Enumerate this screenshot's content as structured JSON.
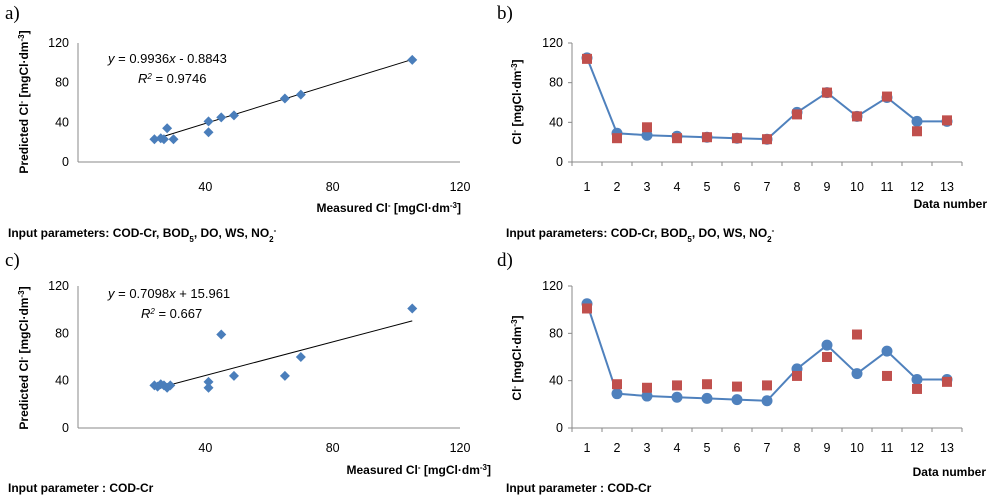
{
  "colors": {
    "scatter_marker": "#4a7ebb",
    "measured": "#4f81bd",
    "predicted": "#c0504d",
    "axis": "#898989",
    "trendline": "#000000"
  },
  "chart_data": [
    {
      "panel": "a)",
      "type": "scatter",
      "xlabel": "Measured Cl",
      "xlabel_sup": "-",
      "xlabel_unit": "[mgCl·dm",
      "xlabel_unit_sup": "-3",
      "ylabel": "Predicted Cl",
      "ylabel_sup": "-",
      "ylabel_unit": "[mgCl·dm",
      "ylabel_unit_sup": "-3",
      "xlim": [
        0,
        120
      ],
      "ylim": [
        0,
        120
      ],
      "xticks": [
        "40",
        "80",
        "120"
      ],
      "yticks": [
        "0",
        "40",
        "80",
        "120"
      ],
      "equation": "y = 0.9936x - 0.8843",
      "r2": "R² = 0.9746",
      "trendline": {
        "slope": 0.9936,
        "intercept": -0.8843,
        "x_range": [
          24,
          105
        ]
      },
      "x": [
        24,
        26,
        27,
        28,
        30,
        41,
        41,
        45,
        49,
        65,
        70,
        105
      ],
      "y": [
        23,
        24,
        23,
        34,
        23,
        41,
        30,
        45,
        47,
        64,
        68,
        103
      ],
      "caption_parts": [
        "Input parameters: COD-Cr, BOD",
        "5",
        ", DO, WS, NO",
        "2",
        "-"
      ]
    },
    {
      "panel": "b)",
      "type": "line",
      "xlabel": "Data number",
      "ylabel": "Cl",
      "ylabel_sup": "-",
      "ylabel_unit": "[mgCl·dm",
      "ylabel_unit_sup": "-3",
      "ylim": [
        0,
        120
      ],
      "yticks": [
        "0",
        "40",
        "80",
        "120"
      ],
      "categories": [
        "1",
        "2",
        "3",
        "4",
        "5",
        "6",
        "7",
        "8",
        "9",
        "10",
        "11",
        "12",
        "13"
      ],
      "grid": "none",
      "legend": "none",
      "series": [
        {
          "values": [
            105,
            29,
            27,
            26,
            25,
            24,
            23,
            50,
            70,
            46,
            65,
            41,
            41
          ]
        },
        {
          "values": [
            104,
            24,
            35,
            24,
            25,
            24,
            23,
            48,
            70,
            46,
            66,
            31,
            42
          ]
        }
      ],
      "caption_parts": [
        "Input parameters: COD-Cr, BOD",
        "5",
        ", DO, WS, NO",
        "2",
        "-"
      ]
    },
    {
      "panel": "c)",
      "type": "scatter",
      "xlabel": "Measured Cl",
      "xlabel_sup": "-",
      "xlabel_unit": "[mgCl·dm",
      "xlabel_unit_sup": "-3",
      "ylabel": "Predicted Cl",
      "ylabel_sup": "-",
      "ylabel_unit": "[mgCl·dm",
      "ylabel_unit_sup": "-3",
      "xlim": [
        0,
        120
      ],
      "ylim": [
        0,
        120
      ],
      "xticks": [
        "40",
        "80",
        "120"
      ],
      "yticks": [
        "0",
        "40",
        "80",
        "120"
      ],
      "equation": "y = 0.7098x + 15.961",
      "r2": "R² = 0.667",
      "trendline": {
        "slope": 0.7098,
        "intercept": 15.961,
        "x_range": [
          24,
          105
        ]
      },
      "x": [
        24,
        25,
        26,
        27,
        28,
        29,
        41,
        41,
        45,
        49,
        65,
        70,
        105
      ],
      "y": [
        36,
        35,
        37,
        36,
        34,
        36,
        39,
        34,
        79,
        44,
        44,
        60,
        101
      ],
      "caption_parts": [
        "Input parameter : COD-Cr"
      ]
    },
    {
      "panel": "d)",
      "type": "line",
      "xlabel": "Data number",
      "ylabel": "Cl",
      "ylabel_sup": "-",
      "ylabel_unit": "[mgCl·dm",
      "ylabel_unit_sup": "-3",
      "ylim": [
        0,
        120
      ],
      "yticks": [
        "0",
        "40",
        "80",
        "120"
      ],
      "categories": [
        "1",
        "2",
        "3",
        "4",
        "5",
        "6",
        "7",
        "8",
        "9",
        "10",
        "11",
        "12",
        "13"
      ],
      "grid": "none",
      "legend": "none",
      "series": [
        {
          "values": [
            105,
            29,
            27,
            26,
            25,
            24,
            23,
            50,
            70,
            46,
            65,
            41,
            41
          ]
        },
        {
          "values": [
            101,
            37,
            34,
            36,
            37,
            35,
            36,
            44,
            60,
            79,
            44,
            33,
            39
          ]
        }
      ],
      "caption_parts": [
        "Input parameter : COD-Cr"
      ]
    }
  ]
}
